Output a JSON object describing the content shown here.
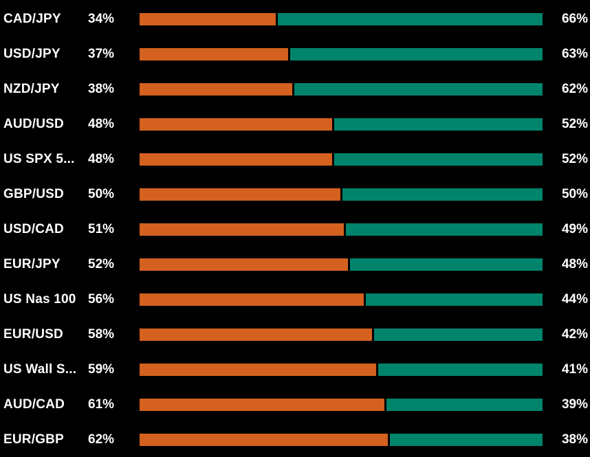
{
  "chart_data": {
    "type": "bar",
    "orientation": "horizontal",
    "stacked": true,
    "title": "",
    "xlabel": "",
    "ylabel": "",
    "value_format": "percent",
    "xlim": [
      0,
      100
    ],
    "grid": false,
    "legend": "none",
    "background_color": "#000000",
    "text_color": "#ffffff",
    "categories": [
      "CAD/JPY",
      "USD/JPY",
      "NZD/JPY",
      "AUD/USD",
      "US SPX 5...",
      "GBP/USD",
      "USD/CAD",
      "EUR/JPY",
      "US Nas 100",
      "EUR/USD",
      "US Wall S...",
      "AUD/CAD",
      "EUR/GBP"
    ],
    "series": [
      {
        "name": "short-sentiment",
        "color": "#d4611f",
        "values": [
          34,
          37,
          38,
          48,
          48,
          50,
          51,
          52,
          56,
          58,
          59,
          61,
          62
        ]
      },
      {
        "name": "long-sentiment",
        "color": "#00846c",
        "values": [
          66,
          63,
          62,
          52,
          52,
          50,
          49,
          48,
          44,
          42,
          41,
          39,
          38
        ]
      }
    ]
  },
  "rows": [
    {
      "label": "CAD/JPY",
      "left": "34%",
      "right": "66%"
    },
    {
      "label": "USD/JPY",
      "left": "37%",
      "right": "63%"
    },
    {
      "label": "NZD/JPY",
      "left": "38%",
      "right": "62%"
    },
    {
      "label": "AUD/USD",
      "left": "48%",
      "right": "52%"
    },
    {
      "label": "US SPX 5...",
      "left": "48%",
      "right": "52%"
    },
    {
      "label": "GBP/USD",
      "left": "50%",
      "right": "50%"
    },
    {
      "label": "USD/CAD",
      "left": "51%",
      "right": "49%"
    },
    {
      "label": "EUR/JPY",
      "left": "52%",
      "right": "48%"
    },
    {
      "label": "US Nas 100",
      "left": "56%",
      "right": "44%"
    },
    {
      "label": "EUR/USD",
      "left": "58%",
      "right": "42%"
    },
    {
      "label": "US Wall S...",
      "left": "59%",
      "right": "41%"
    },
    {
      "label": "AUD/CAD",
      "left": "61%",
      "right": "39%"
    },
    {
      "label": "EUR/GBP",
      "left": "62%",
      "right": "38%"
    }
  ]
}
